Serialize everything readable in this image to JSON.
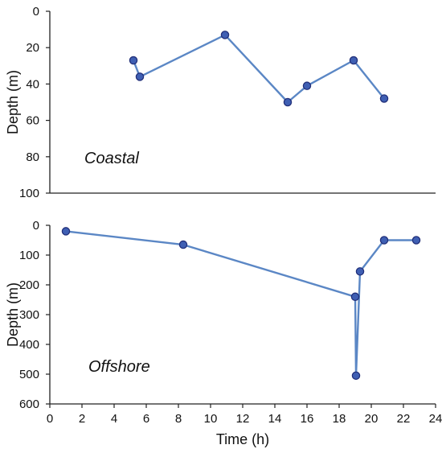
{
  "colors": {
    "line": "#5b87c5",
    "marker_fill": "#3f5fb3",
    "marker_edge": "#22307a"
  },
  "chart_data": [
    {
      "type": "line",
      "annotation": "Coastal",
      "xlim": [
        0,
        24
      ],
      "ylim": [
        0,
        100
      ],
      "y_inverted": true,
      "ylabel": "Depth (m)",
      "yticks": [
        0,
        20,
        40,
        60,
        80,
        100
      ],
      "series": [
        {
          "x": [
            5.2,
            5.6,
            10.9,
            14.8,
            16.0,
            18.9,
            20.8
          ],
          "y": [
            27,
            36,
            13,
            50,
            41,
            27,
            48
          ]
        }
      ]
    },
    {
      "type": "line",
      "annotation": "Offshore",
      "xlim": [
        0,
        24
      ],
      "ylim": [
        0,
        600
      ],
      "y_inverted": true,
      "ylabel": "Depth (m)",
      "xlabel": "Time (h)",
      "xticks": [
        0,
        2,
        4,
        6,
        8,
        10,
        12,
        14,
        16,
        18,
        20,
        22,
        24
      ],
      "yticks": [
        0,
        100,
        200,
        300,
        400,
        500,
        600
      ],
      "series": [
        {
          "x": [
            1.0,
            8.3,
            19.0,
            19.05,
            19.3,
            20.8,
            22.8
          ],
          "y": [
            20,
            65,
            240,
            505,
            155,
            50,
            50
          ]
        }
      ]
    }
  ]
}
